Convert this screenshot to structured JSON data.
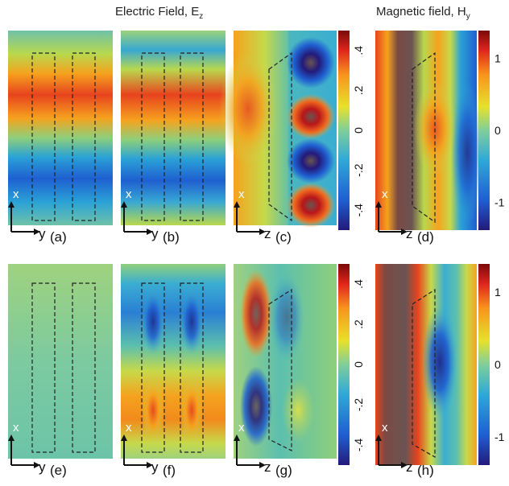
{
  "titles": {
    "electric": "Electric Field, E",
    "electric_sub": "z",
    "magnetic": "Magnetic field, H",
    "magnetic_sub": "y"
  },
  "panels": [
    {
      "id": "a",
      "label": "(a)",
      "axis": "y",
      "vertical_axis": "x"
    },
    {
      "id": "b",
      "label": "(b)",
      "axis": "y",
      "vertical_axis": "x"
    },
    {
      "id": "c",
      "label": "(c)",
      "axis": "z",
      "vertical_axis": "x"
    },
    {
      "id": "d",
      "label": "(d)",
      "axis": "z",
      "vertical_axis": "x"
    },
    {
      "id": "e",
      "label": "(e)",
      "axis": "y",
      "vertical_axis": "x"
    },
    {
      "id": "f",
      "label": "(f)",
      "axis": "y",
      "vertical_axis": "x"
    },
    {
      "id": "g",
      "label": "(g)",
      "axis": "z",
      "vertical_axis": "x"
    },
    {
      "id": "h",
      "label": "(h)",
      "axis": "z",
      "vertical_axis": "x"
    }
  ],
  "colorbars": {
    "electric_ticks": [
      ".4",
      ".2",
      "0",
      "-.2",
      "-.4"
    ],
    "magnetic_ticks": [
      "1",
      "0",
      "-1"
    ]
  },
  "colors": {
    "dark_red": "#7a0a0a",
    "red": "#e0261c",
    "orange": "#f7941d",
    "yellow": "#e8e12a",
    "teal": "#4db8b0",
    "blue": "#1f5fd1",
    "navy": "#231a7a",
    "saturated": "#6a5452"
  }
}
